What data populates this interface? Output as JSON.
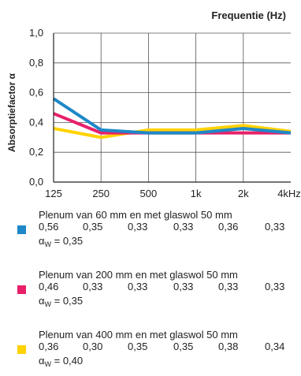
{
  "chart_data": {
    "type": "line",
    "title": "Frequentie (Hz)",
    "ylabel": "Absorptiefactor α",
    "xlabel": "",
    "categories": [
      "125",
      "250",
      "500",
      "1k",
      "2k",
      "4kHz"
    ],
    "yticks": [
      "0,0",
      "0,2",
      "0,4",
      "0,6",
      "0,8",
      "1,0"
    ],
    "ylim": [
      0,
      1
    ],
    "grid": true,
    "series": [
      {
        "name": "Plenum van 60 mm en met glaswol 50 mm",
        "color": "#1e88c8",
        "values": [
          0.56,
          0.35,
          0.33,
          0.33,
          0.36,
          0.33
        ],
        "labels": [
          "0,56",
          "0,35",
          "0,33",
          "0,33",
          "0,36",
          "0,33"
        ],
        "alpha_w_label": "α",
        "alpha_w_sub": "W",
        "alpha_w_value": " = 0,35"
      },
      {
        "name": "Plenum van 200 mm en met glaswol 50 mm",
        "color": "#e8206a",
        "values": [
          0.46,
          0.33,
          0.33,
          0.33,
          0.33,
          0.33
        ],
        "labels": [
          "0,46",
          "0,33",
          "0,33",
          "0,33",
          "0,33",
          "0,33"
        ],
        "alpha_w_label": "α",
        "alpha_w_sub": "W",
        "alpha_w_value": " =  0,35"
      },
      {
        "name": "Plenum van 400 mm en met glaswol 50 mm",
        "color": "#ffd200",
        "values": [
          0.36,
          0.3,
          0.35,
          0.35,
          0.38,
          0.34
        ],
        "labels": [
          "0,36",
          "0,30",
          "0,35",
          "0,35",
          "0,38",
          "0,34"
        ],
        "alpha_w_label": "α",
        "alpha_w_sub": "W",
        "alpha_w_value": " = 0,40"
      }
    ]
  }
}
